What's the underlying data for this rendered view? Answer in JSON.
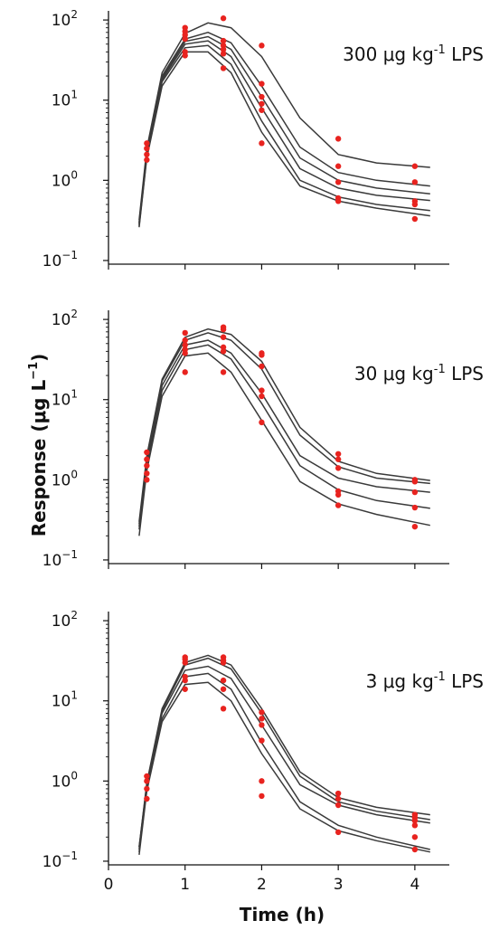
{
  "chart_data": [
    {
      "type": "line",
      "annotation": "300 μg kg",
      "annotation_exp": "-1",
      "annotation_tail": " LPS",
      "yscale": "log",
      "ylim": [
        0.09,
        130
      ],
      "yticks": [
        {
          "v": 100,
          "exp": "2"
        },
        {
          "v": 10,
          "exp": "1"
        },
        {
          "v": 1,
          "exp": "0"
        },
        {
          "v": 0.1,
          "exp": "−1"
        }
      ],
      "points": [
        [
          0.5,
          2.9
        ],
        [
          0.5,
          2.5
        ],
        [
          0.5,
          2.1
        ],
        [
          0.5,
          1.8
        ],
        [
          1,
          80
        ],
        [
          1,
          72
        ],
        [
          1,
          65
        ],
        [
          1,
          58
        ],
        [
          1,
          40
        ],
        [
          1,
          36
        ],
        [
          1.5,
          105
        ],
        [
          1.5,
          55
        ],
        [
          1.5,
          48
        ],
        [
          1.5,
          43
        ],
        [
          1.5,
          38
        ],
        [
          1.5,
          25
        ],
        [
          2,
          48
        ],
        [
          2,
          16
        ],
        [
          2,
          11
        ],
        [
          2,
          9
        ],
        [
          2,
          7.5
        ],
        [
          2,
          2.9
        ],
        [
          3,
          3.3
        ],
        [
          3,
          1.5
        ],
        [
          3,
          0.95
        ],
        [
          3,
          0.6
        ],
        [
          3,
          0.55
        ],
        [
          4,
          1.5
        ],
        [
          4,
          0.95
        ],
        [
          4,
          0.55
        ],
        [
          4,
          0.5
        ],
        [
          4,
          0.33
        ]
      ],
      "curves": [
        {
          "x": [
            0.4,
            0.5,
            0.7,
            1.0,
            1.3,
            1.6,
            2.0,
            2.5,
            3.0,
            3.5,
            4.2
          ],
          "y": [
            0.32,
            2.5,
            22,
            68,
            92,
            80,
            35,
            6,
            2.1,
            1.65,
            1.45
          ]
        },
        {
          "x": [
            0.4,
            0.5,
            0.7,
            1.0,
            1.3,
            1.6,
            2.0,
            2.5,
            3.0,
            3.5,
            4.2
          ],
          "y": [
            0.3,
            2.3,
            20,
            58,
            70,
            52,
            15,
            2.6,
            1.25,
            1.0,
            0.85
          ]
        },
        {
          "x": [
            0.4,
            0.5,
            0.7,
            1.0,
            1.3,
            1.6,
            2.0,
            2.5,
            3.0,
            3.5,
            4.2
          ],
          "y": [
            0.29,
            2.2,
            19,
            54,
            62,
            43,
            11,
            1.9,
            1.0,
            0.8,
            0.68
          ]
        },
        {
          "x": [
            0.4,
            0.5,
            0.7,
            1.0,
            1.3,
            1.6,
            2.0,
            2.5,
            3.0,
            3.5,
            4.2
          ],
          "y": [
            0.28,
            2.1,
            18,
            50,
            55,
            35,
            8,
            1.4,
            0.8,
            0.65,
            0.56
          ]
        },
        {
          "x": [
            0.4,
            0.5,
            0.7,
            1.0,
            1.3,
            1.6,
            2.0,
            2.5,
            3.0,
            3.5,
            4.2
          ],
          "y": [
            0.27,
            2.0,
            17,
            45,
            48,
            28,
            5.5,
            1.0,
            0.62,
            0.5,
            0.42
          ]
        },
        {
          "x": [
            0.4,
            0.5,
            0.7,
            1.0,
            1.3,
            1.6,
            2.0,
            2.5,
            3.0,
            3.5,
            4.2
          ],
          "y": [
            0.26,
            1.9,
            15,
            40,
            40,
            22,
            4,
            0.85,
            0.55,
            0.45,
            0.36
          ]
        }
      ]
    },
    {
      "type": "line",
      "annotation": "30 μg kg",
      "annotation_exp": "-1",
      "annotation_tail": " LPS",
      "yscale": "log",
      "ylim": [
        0.09,
        130
      ],
      "yticks": [
        {
          "v": 100,
          "exp": "2"
        },
        {
          "v": 10,
          "exp": "1"
        },
        {
          "v": 1,
          "exp": "0"
        },
        {
          "v": 0.1,
          "exp": "−1"
        }
      ],
      "points": [
        [
          0.5,
          2.2
        ],
        [
          0.5,
          1.8
        ],
        [
          0.5,
          1.5
        ],
        [
          0.5,
          1.2
        ],
        [
          0.5,
          1.0
        ],
        [
          1,
          68
        ],
        [
          1,
          55
        ],
        [
          1,
          48
        ],
        [
          1,
          42
        ],
        [
          1,
          38
        ],
        [
          1,
          22
        ],
        [
          1.5,
          80
        ],
        [
          1.5,
          75
        ],
        [
          1.5,
          60
        ],
        [
          1.5,
          45
        ],
        [
          1.5,
          40
        ],
        [
          1.5,
          22
        ],
        [
          2,
          38
        ],
        [
          2,
          36
        ],
        [
          2,
          26
        ],
        [
          2,
          13
        ],
        [
          2,
          11
        ],
        [
          2,
          5.2
        ],
        [
          3,
          2.1
        ],
        [
          3,
          1.8
        ],
        [
          3,
          1.4
        ],
        [
          3,
          0.72
        ],
        [
          3,
          0.65
        ],
        [
          3,
          0.48
        ],
        [
          4,
          1.0
        ],
        [
          4,
          0.95
        ],
        [
          4,
          0.7
        ],
        [
          4,
          0.45
        ],
        [
          4,
          0.26
        ]
      ],
      "curves": [
        {
          "x": [
            0.4,
            0.5,
            0.7,
            1.0,
            1.3,
            1.6,
            2.0,
            2.5,
            3.0,
            3.5,
            4.2
          ],
          "y": [
            0.3,
            2.0,
            18,
            60,
            76,
            65,
            30,
            4.5,
            1.7,
            1.2,
            0.98
          ]
        },
        {
          "x": [
            0.4,
            0.5,
            0.7,
            1.0,
            1.3,
            1.6,
            2.0,
            2.5,
            3.0,
            3.5,
            4.2
          ],
          "y": [
            0.28,
            1.8,
            17,
            55,
            68,
            55,
            24,
            3.6,
            1.45,
            1.05,
            0.9
          ]
        },
        {
          "x": [
            0.4,
            0.5,
            0.7,
            1.0,
            1.3,
            1.6,
            2.0,
            2.5,
            3.0,
            3.5,
            4.2
          ],
          "y": [
            0.26,
            1.6,
            15,
            48,
            55,
            38,
            12,
            2.0,
            1.05,
            0.82,
            0.7
          ]
        },
        {
          "x": [
            0.4,
            0.5,
            0.7,
            1.0,
            1.3,
            1.6,
            2.0,
            2.5,
            3.0,
            3.5,
            4.2
          ],
          "y": [
            0.24,
            1.5,
            13,
            42,
            48,
            32,
            9,
            1.5,
            0.75,
            0.55,
            0.44
          ]
        },
        {
          "x": [
            0.4,
            0.5,
            0.7,
            1.0,
            1.3,
            1.6,
            2.0,
            2.5,
            3.0,
            3.5,
            4.2
          ],
          "y": [
            0.2,
            1.3,
            11,
            35,
            38,
            22,
            5.5,
            0.95,
            0.5,
            0.37,
            0.27
          ]
        }
      ]
    },
    {
      "type": "line",
      "annotation": "3 μg kg",
      "annotation_exp": "-1",
      "annotation_tail": " LPS",
      "yscale": "log",
      "ylim": [
        0.09,
        130
      ],
      "yticks": [
        {
          "v": 100,
          "exp": "2"
        },
        {
          "v": 10,
          "exp": "1"
        },
        {
          "v": 1,
          "exp": "0"
        },
        {
          "v": 0.1,
          "exp": "−1"
        }
      ],
      "xlabel": "Time (h)",
      "xticks": [
        0,
        1,
        2,
        3,
        4
      ],
      "points": [
        [
          0.5,
          1.15
        ],
        [
          0.5,
          1.0
        ],
        [
          0.5,
          0.8
        ],
        [
          0.5,
          0.6
        ],
        [
          1,
          35
        ],
        [
          1,
          33
        ],
        [
          1,
          30
        ],
        [
          1,
          20
        ],
        [
          1,
          18
        ],
        [
          1,
          14
        ],
        [
          1.5,
          35
        ],
        [
          1.5,
          32
        ],
        [
          1.5,
          30
        ],
        [
          1.5,
          18
        ],
        [
          1.5,
          14
        ],
        [
          1.5,
          8
        ],
        [
          2,
          7.2
        ],
        [
          2,
          6
        ],
        [
          2,
          5
        ],
        [
          2,
          3.2
        ],
        [
          2,
          1.0
        ],
        [
          2,
          0.65
        ],
        [
          3,
          0.7
        ],
        [
          3,
          0.6
        ],
        [
          3,
          0.5
        ],
        [
          3,
          0.23
        ],
        [
          4,
          0.38
        ],
        [
          4,
          0.35
        ],
        [
          4,
          0.32
        ],
        [
          4,
          0.28
        ],
        [
          4,
          0.2
        ],
        [
          4,
          0.14
        ]
      ],
      "curves": [
        {
          "x": [
            0.4,
            0.5,
            0.7,
            1.0,
            1.3,
            1.6,
            2.0,
            2.5,
            3.0,
            3.5,
            4.2
          ],
          "y": [
            0.15,
            0.95,
            8,
            30,
            37,
            28,
            8,
            1.3,
            0.62,
            0.47,
            0.38
          ]
        },
        {
          "x": [
            0.4,
            0.5,
            0.7,
            1.0,
            1.3,
            1.6,
            2.0,
            2.5,
            3.0,
            3.5,
            4.2
          ],
          "y": [
            0.15,
            0.9,
            7.5,
            28,
            34,
            25,
            7,
            1.15,
            0.55,
            0.42,
            0.33
          ]
        },
        {
          "x": [
            0.4,
            0.5,
            0.7,
            1.0,
            1.3,
            1.6,
            2.0,
            2.5,
            3.0,
            3.5,
            4.2
          ],
          "y": [
            0.14,
            0.85,
            7,
            24,
            27,
            19,
            5,
            0.9,
            0.5,
            0.38,
            0.3
          ]
        },
        {
          "x": [
            0.4,
            0.5,
            0.7,
            1.0,
            1.3,
            1.6,
            2.0,
            2.5,
            3.0,
            3.5,
            4.2
          ],
          "y": [
            0.13,
            0.8,
            6,
            20,
            22,
            14,
            3,
            0.55,
            0.28,
            0.2,
            0.14
          ]
        },
        {
          "x": [
            0.4,
            0.5,
            0.7,
            1.0,
            1.3,
            1.6,
            2.0,
            2.5,
            3.0,
            3.5,
            4.2
          ],
          "y": [
            0.12,
            0.75,
            5.5,
            16,
            17,
            10,
            2.2,
            0.45,
            0.24,
            0.18,
            0.13
          ]
        }
      ]
    }
  ],
  "ylabel": "Response (μg L",
  "ylabel_exp": "−1",
  "ylabel_tail": ")",
  "colors": {
    "point": "#e8231f",
    "curve": "#3a3a3a",
    "axis": "#111111"
  }
}
